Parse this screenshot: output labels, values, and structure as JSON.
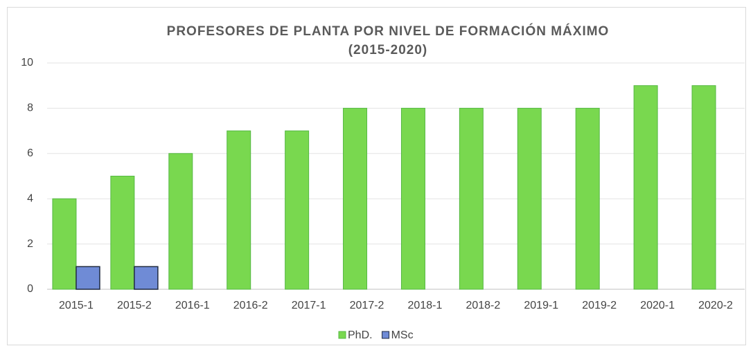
{
  "chart_data": {
    "type": "bar",
    "title": "PROFESORES DE PLANTA POR NIVEL DE FORMACIÓN MÁXIMO",
    "subtitle": "(2015-2020)",
    "categories": [
      "2015-1",
      "2015-2",
      "2016-1",
      "2016-2",
      "2017-1",
      "2017-2",
      "2018-1",
      "2018-2",
      "2019-1",
      "2019-2",
      "2020-1",
      "2020-2"
    ],
    "series": [
      {
        "name": "PhD.",
        "color": "#79d84f",
        "values": [
          4,
          5,
          6,
          7,
          7,
          8,
          8,
          8,
          8,
          8,
          9,
          9
        ]
      },
      {
        "name": "MSc",
        "color": "#6f8bd6",
        "values": [
          1,
          1,
          0,
          0,
          0,
          0,
          0,
          0,
          0,
          0,
          0,
          0
        ]
      }
    ],
    "ylim": [
      0,
      10
    ],
    "yticks": [
      0,
      2,
      4,
      6,
      8,
      10
    ],
    "grid": true,
    "legend": "bottom"
  }
}
